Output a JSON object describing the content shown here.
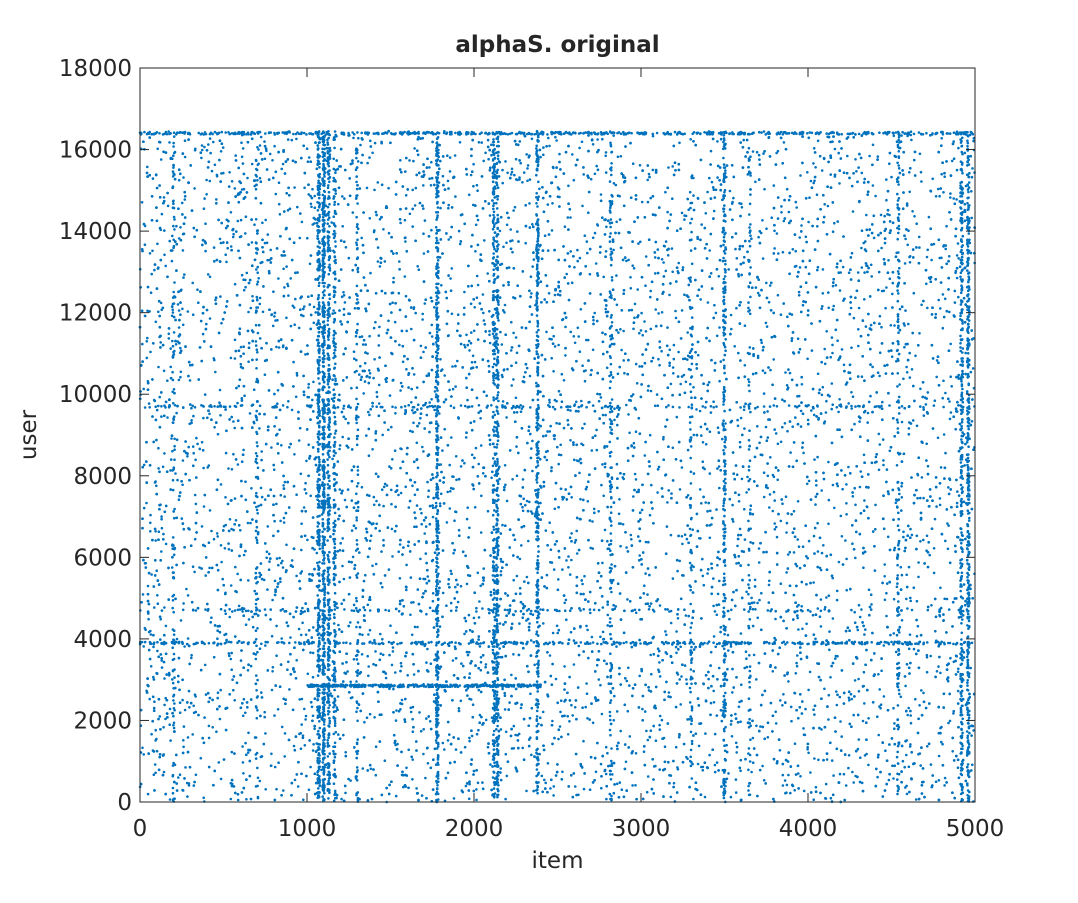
{
  "chart_data": {
    "type": "scatter",
    "title": "alphaS. original",
    "xlabel": "item",
    "ylabel": "user",
    "xlim": [
      0,
      5000
    ],
    "ylim": [
      0,
      18000
    ],
    "x_ticks": [
      0,
      1000,
      2000,
      3000,
      4000,
      5000
    ],
    "y_ticks": [
      0,
      2000,
      4000,
      6000,
      8000,
      10000,
      12000,
      14000,
      16000,
      18000
    ],
    "x_tick_labels": [
      "0",
      "1000",
      "2000",
      "3000",
      "4000",
      "5000"
    ],
    "y_tick_labels": [
      "0",
      "2000",
      "4000",
      "6000",
      "8000",
      "10000",
      "12000",
      "14000",
      "16000",
      "18000"
    ],
    "grid": false,
    "box": true,
    "marker_color": "#0072BD",
    "point_cloud": {
      "x_range": [
        0,
        5000
      ],
      "y_range": [
        0,
        16450
      ],
      "approx_point_count": 16000,
      "dense_item_columns": [
        {
          "item": 1070,
          "user_range": [
            0,
            16450
          ],
          "strength": 0.55
        },
        {
          "item": 1100,
          "user_range": [
            0,
            16450
          ],
          "strength": 0.7
        },
        {
          "item": 1130,
          "user_range": [
            0,
            16450
          ],
          "strength": 0.45
        },
        {
          "item": 1165,
          "user_range": [
            0,
            16450
          ],
          "strength": 0.3
        },
        {
          "item": 1780,
          "user_range": [
            0,
            16450
          ],
          "strength": 0.55
        },
        {
          "item": 2120,
          "user_range": [
            0,
            16450
          ],
          "strength": 0.35
        },
        {
          "item": 2140,
          "user_range": [
            0,
            16450
          ],
          "strength": 0.45
        },
        {
          "item": 2380,
          "user_range": [
            0,
            16450
          ],
          "strength": 0.45
        },
        {
          "item": 2820,
          "user_range": [
            0,
            16450
          ],
          "strength": 0.2
        },
        {
          "item": 3500,
          "user_range": [
            0,
            16450
          ],
          "strength": 0.35
        },
        {
          "item": 4540,
          "user_range": [
            0,
            16450
          ],
          "strength": 0.2
        },
        {
          "item": 4920,
          "user_range": [
            0,
            16450
          ],
          "strength": 0.4
        },
        {
          "item": 4960,
          "user_range": [
            0,
            16450
          ],
          "strength": 0.5
        },
        {
          "item": 200,
          "user_range": [
            0,
            16450
          ],
          "strength": 0.15
        },
        {
          "item": 700,
          "user_range": [
            0,
            16450
          ],
          "strength": 0.15
        },
        {
          "item": 1300,
          "user_range": [
            0,
            16450
          ],
          "strength": 0.15
        },
        {
          "item": 3300,
          "user_range": [
            0,
            16450
          ],
          "strength": 0.12
        },
        {
          "item": 3650,
          "user_range": [
            0,
            16450
          ],
          "strength": 0.12
        }
      ],
      "dense_user_rows": [
        {
          "user": 16400,
          "item_range": [
            0,
            5000
          ],
          "strength": 0.5
        },
        {
          "user": 3900,
          "item_range": [
            0,
            5000
          ],
          "strength": 0.35
        },
        {
          "user": 2850,
          "item_range": [
            1000,
            2400
          ],
          "strength": 0.3
        },
        {
          "user": 9700,
          "item_range": [
            0,
            5000
          ],
          "strength": 0.15
        },
        {
          "user": 4700,
          "item_range": [
            0,
            5000
          ],
          "strength": 0.1
        }
      ]
    }
  }
}
